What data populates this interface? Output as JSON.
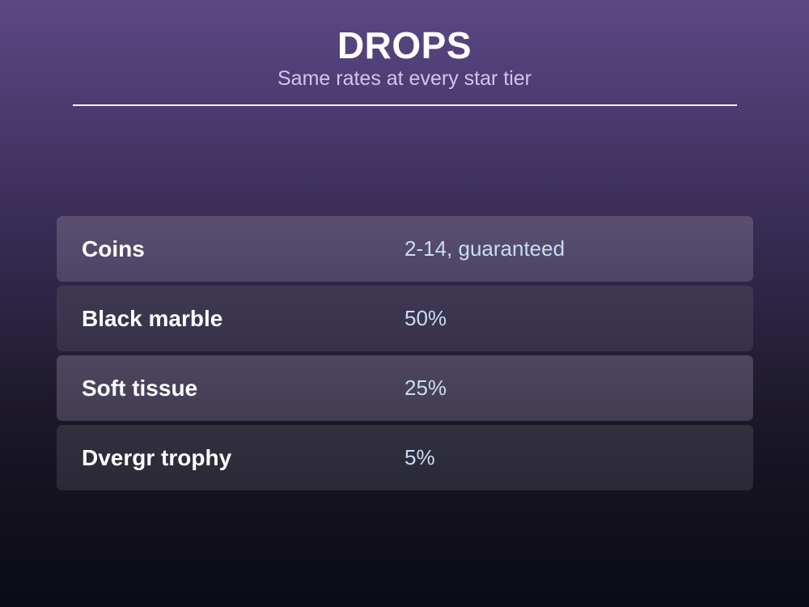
{
  "header": {
    "title": "DROPS",
    "subtitle": "Same rates at every star tier"
  },
  "drops": [
    {
      "item": "Coins",
      "rate": "2-14, guaranteed"
    },
    {
      "item": "Black marble",
      "rate": "50%"
    },
    {
      "item": "Soft tissue",
      "rate": "25%"
    },
    {
      "item": "Dvergr trophy",
      "rate": "5%"
    }
  ],
  "colors": {
    "title": "#ffffff",
    "subtitle": "#cfc6ee",
    "rate_text": "#c9dcf6",
    "background_top": "#5c4885",
    "background_bottom": "#0b0c16"
  }
}
